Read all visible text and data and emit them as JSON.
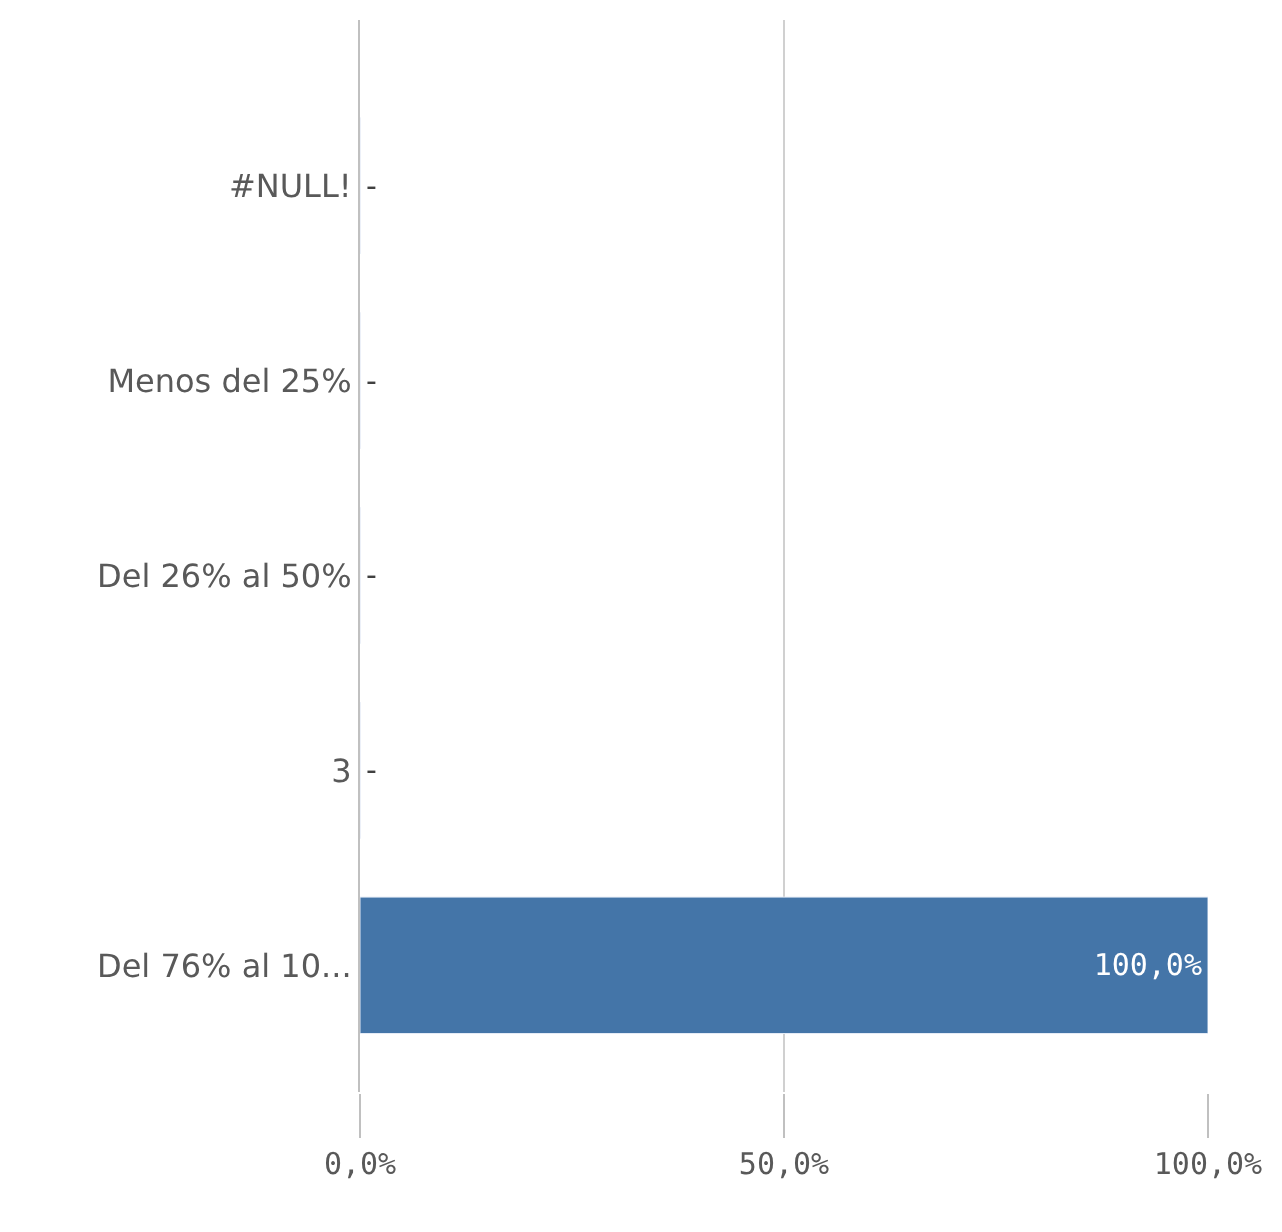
{
  "chart_data": {
    "type": "bar",
    "orientation": "horizontal",
    "categories": [
      "#NULL!",
      "Menos del 25%",
      "Del 26% al 50%",
      "3",
      "Del 76% al 10..."
    ],
    "values": [
      0,
      0,
      0,
      0,
      100
    ],
    "value_labels": [
      "-",
      "-",
      "-",
      "-",
      "100,0%"
    ],
    "color": "#4475a8",
    "xlim": [
      0,
      100
    ],
    "xticks": [
      {
        "value": 0,
        "label": "0,0%"
      },
      {
        "value": 50,
        "label": "50,0%"
      },
      {
        "value": 100,
        "label": "100,0%"
      }
    ],
    "grid": "x"
  }
}
